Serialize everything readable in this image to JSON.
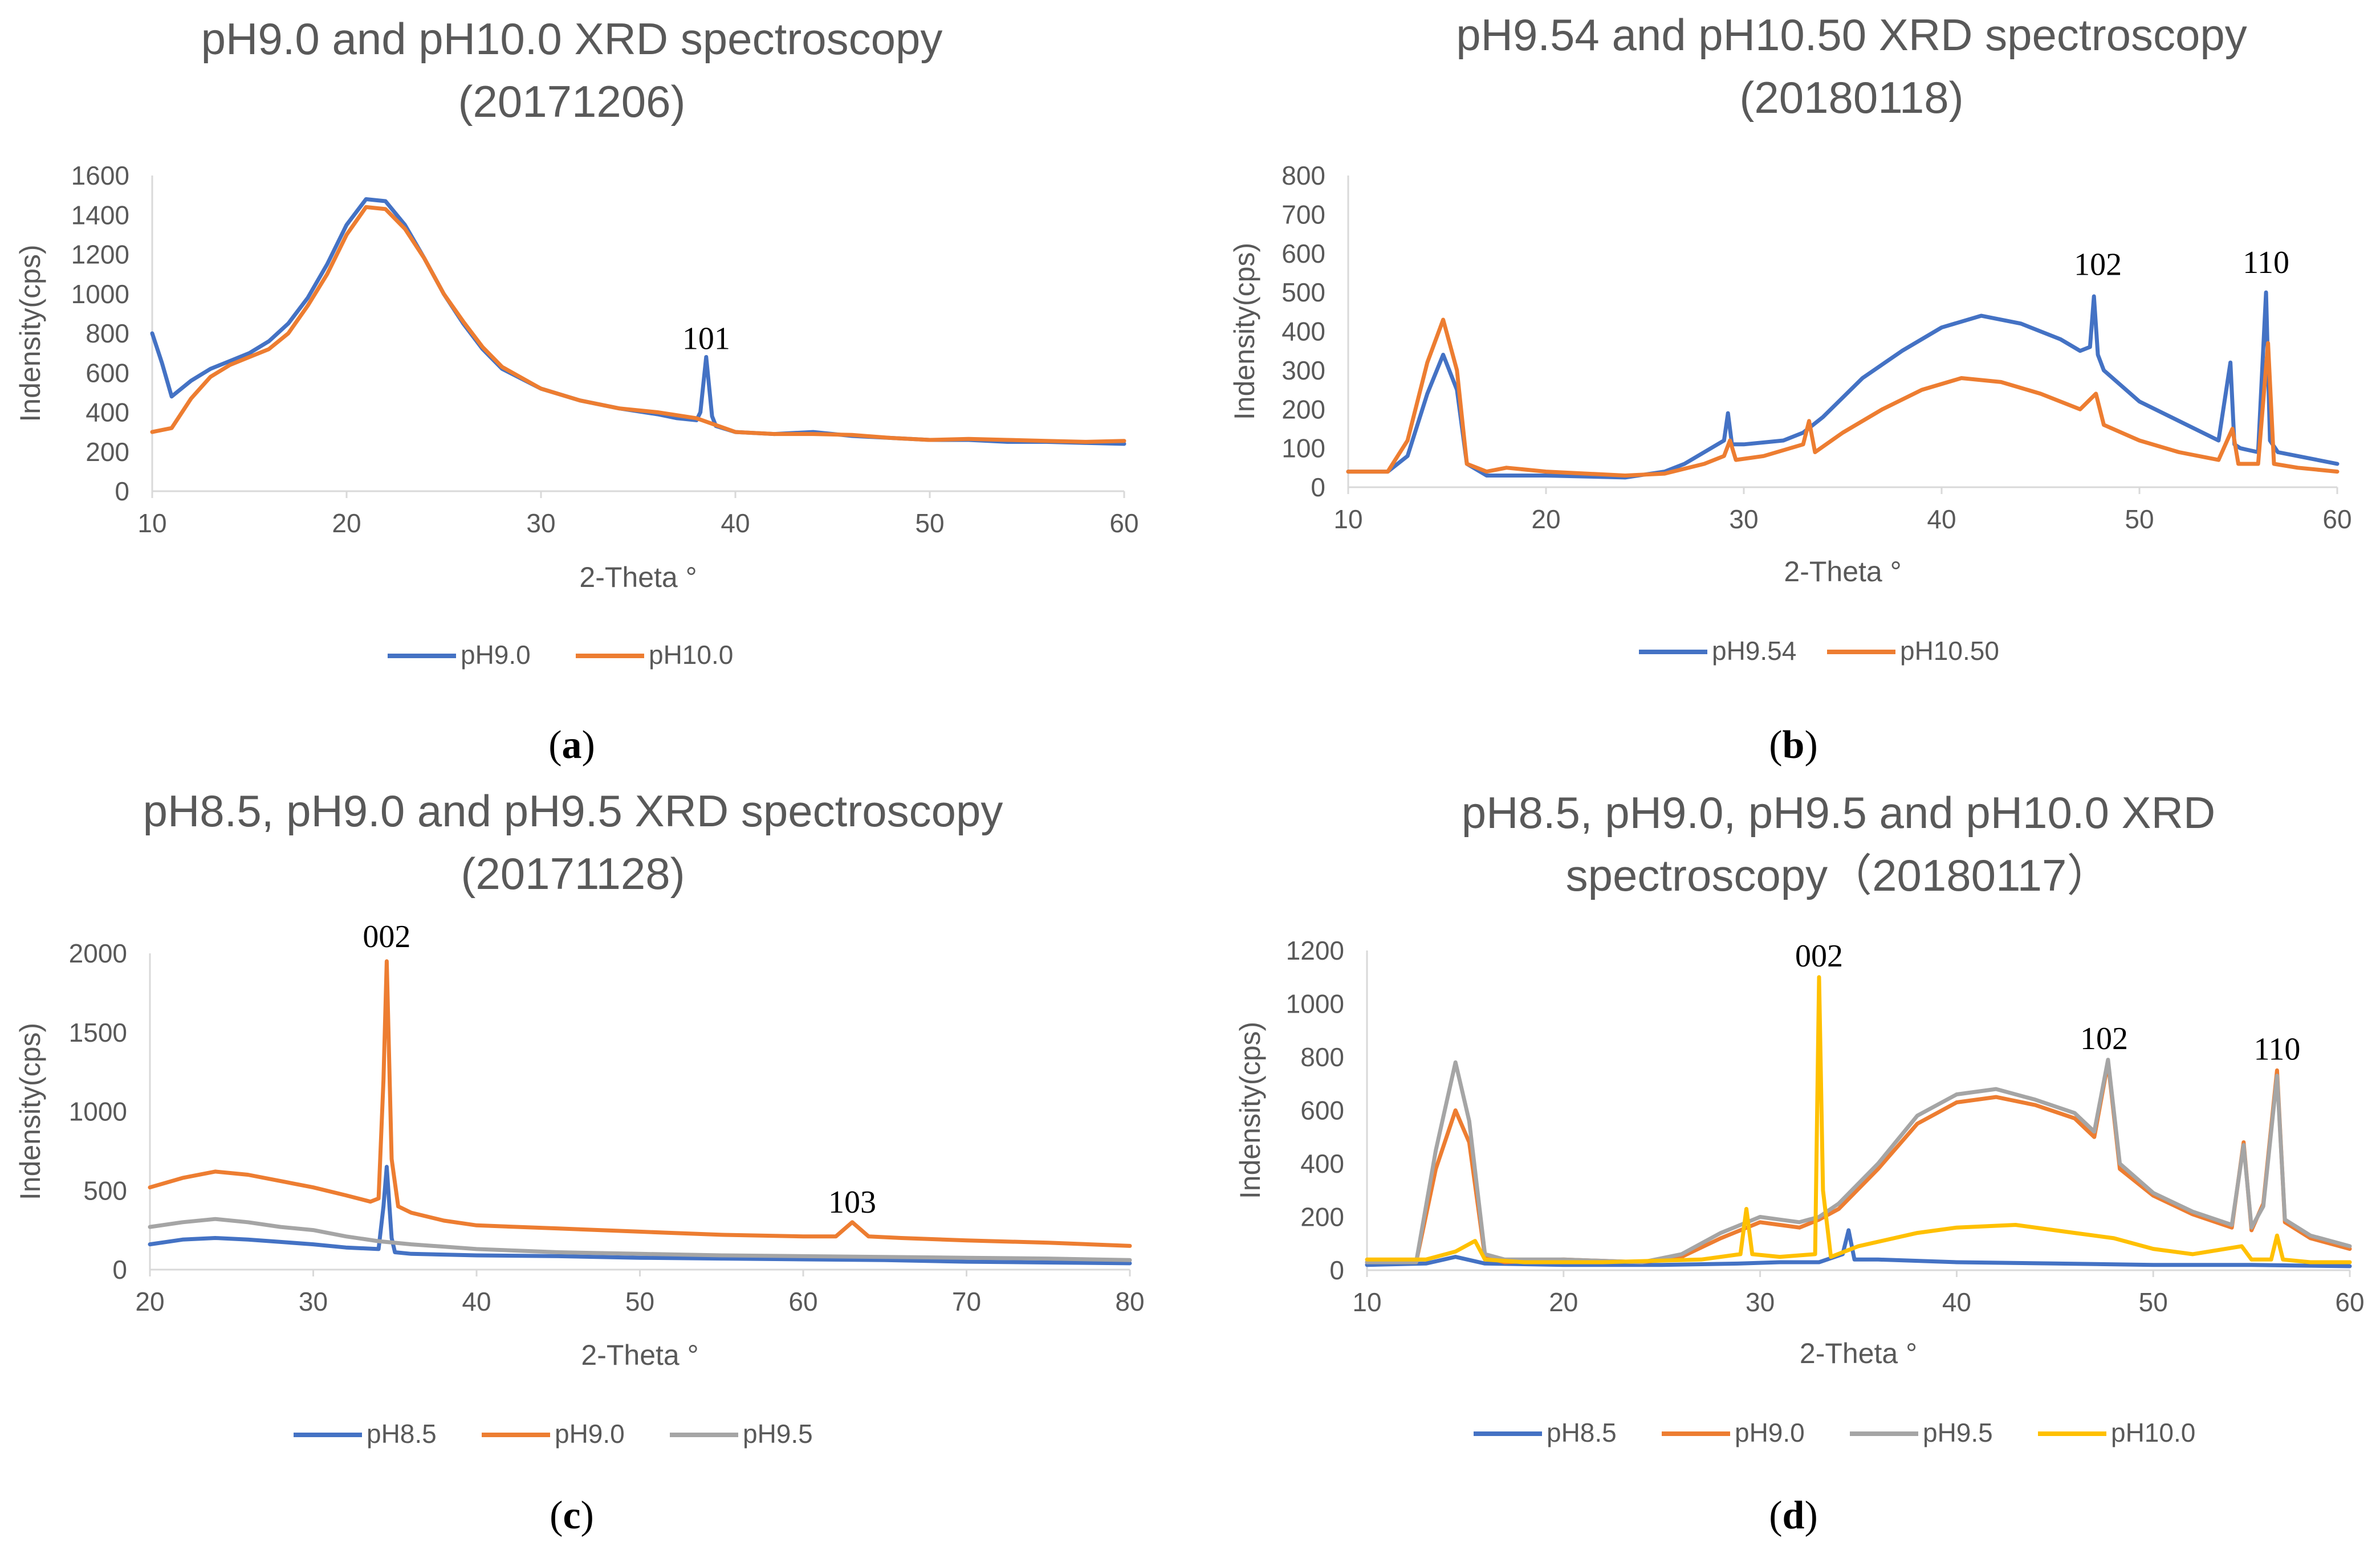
{
  "colors": {
    "blue": "#4472C4",
    "orange": "#ED7D31",
    "gray": "#A5A5A5",
    "yellow": "#FFC000",
    "text": "#595959",
    "axis": "#D9D9D9"
  },
  "chart_data": [
    {
      "panel": "a",
      "type": "line",
      "title_lines": [
        "pH9.0 and pH10.0 XRD spectroscopy",
        "(20171206)"
      ],
      "xlabel": "2-Theta °",
      "ylabel": "Indensity(cps)",
      "xlim": [
        10,
        60
      ],
      "ylim": [
        0,
        1600
      ],
      "xticks": [
        10,
        20,
        30,
        40,
        50,
        60
      ],
      "yticks": [
        0,
        200,
        400,
        600,
        800,
        1000,
        1200,
        1400,
        1600
      ],
      "legend_position": "bottom",
      "caption": "a",
      "series": [
        {
          "name": "pH9.0",
          "color": "#4472C4",
          "x": [
            10,
            10.5,
            11,
            12,
            13,
            14,
            15,
            16,
            17,
            18,
            19,
            20,
            21,
            22,
            23,
            24,
            25,
            26,
            27,
            28,
            30,
            32,
            34,
            36,
            37,
            38,
            38.2,
            38.5,
            38.8,
            39,
            40,
            42,
            44,
            46,
            48,
            50,
            52,
            54,
            56,
            58,
            60
          ],
          "y": [
            800,
            650,
            480,
            560,
            620,
            660,
            700,
            760,
            850,
            980,
            1150,
            1350,
            1480,
            1470,
            1350,
            1180,
            1000,
            850,
            720,
            620,
            520,
            460,
            420,
            390,
            370,
            360,
            400,
            680,
            380,
            330,
            300,
            290,
            300,
            280,
            270,
            260,
            260,
            250,
            250,
            245,
            240
          ]
        },
        {
          "name": "pH10.0",
          "color": "#ED7D31",
          "x": [
            10,
            11,
            12,
            13,
            14,
            15,
            16,
            17,
            18,
            19,
            20,
            21,
            22,
            23,
            24,
            25,
            26,
            27,
            28,
            30,
            32,
            34,
            36,
            38,
            40,
            42,
            44,
            46,
            48,
            50,
            52,
            54,
            56,
            58,
            60
          ],
          "y": [
            300,
            320,
            470,
            580,
            640,
            680,
            720,
            800,
            940,
            1100,
            1300,
            1440,
            1430,
            1330,
            1180,
            1000,
            860,
            730,
            630,
            520,
            460,
            420,
            400,
            370,
            300,
            290,
            290,
            285,
            270,
            260,
            265,
            260,
            255,
            250,
            255
          ]
        }
      ],
      "annotations": [
        {
          "text": "101",
          "x": 38.5,
          "y": 720
        }
      ]
    },
    {
      "panel": "b",
      "type": "line",
      "title_lines": [
        "pH9.54 and pH10.50 XRD spectroscopy",
        "(20180118)"
      ],
      "xlabel": "2-Theta °",
      "ylabel": "Indensity(cps)",
      "xlim": [
        10,
        60
      ],
      "ylim": [
        0,
        800
      ],
      "xticks": [
        10,
        20,
        30,
        40,
        50,
        60
      ],
      "yticks": [
        0,
        100,
        200,
        300,
        400,
        500,
        600,
        700,
        800
      ],
      "legend_position": "bottom",
      "caption": "b",
      "series": [
        {
          "name": "pH9.54",
          "color": "#4472C4",
          "x": [
            10,
            12,
            13,
            14,
            14.8,
            15.5,
            16,
            17,
            20,
            24,
            26,
            27,
            28,
            29,
            29.2,
            29.4,
            30,
            32,
            33,
            34,
            36,
            38,
            40,
            42,
            44,
            46,
            47,
            47.5,
            47.7,
            47.9,
            48.2,
            50,
            52,
            54,
            54.6,
            54.8,
            55.1,
            56,
            56.4,
            56.6,
            57,
            58,
            60
          ],
          "y": [
            40,
            40,
            80,
            240,
            340,
            250,
            60,
            30,
            30,
            25,
            40,
            60,
            90,
            120,
            190,
            110,
            110,
            120,
            140,
            180,
            280,
            350,
            410,
            440,
            420,
            380,
            350,
            360,
            490,
            340,
            300,
            220,
            170,
            120,
            320,
            110,
            100,
            90,
            500,
            120,
            90,
            80,
            60
          ]
        },
        {
          "name": "pH10.50",
          "color": "#ED7D31",
          "x": [
            10,
            12,
            13,
            14,
            14.8,
            15.5,
            16,
            17,
            18,
            20,
            24,
            26,
            28,
            29,
            29.3,
            29.6,
            31,
            33,
            33.3,
            33.6,
            35,
            37,
            39,
            41,
            43,
            45,
            47,
            47.8,
            48.2,
            50,
            52,
            54,
            54.7,
            55,
            56,
            56.5,
            56.8,
            58,
            60
          ],
          "y": [
            40,
            40,
            120,
            320,
            430,
            300,
            60,
            40,
            50,
            40,
            30,
            35,
            60,
            80,
            120,
            70,
            80,
            110,
            170,
            90,
            140,
            200,
            250,
            280,
            270,
            240,
            200,
            240,
            160,
            120,
            90,
            70,
            150,
            60,
            60,
            370,
            60,
            50,
            40
          ]
        }
      ],
      "annotations": [
        {
          "text": "102",
          "x": 47.9,
          "y": 545
        },
        {
          "text": "110",
          "x": 56.4,
          "y": 550
        }
      ]
    },
    {
      "panel": "c",
      "type": "line",
      "title_lines": [
        "pH8.5, pH9.0 and pH9.5 XRD spectroscopy",
        "(20171128)"
      ],
      "xlabel": "2-Theta °",
      "ylabel": "Indensity(cps)",
      "xlim": [
        20,
        80
      ],
      "ylim": [
        0,
        2000
      ],
      "xticks": [
        20,
        30,
        40,
        50,
        60,
        70,
        80
      ],
      "yticks": [
        0,
        500,
        1000,
        1500,
        2000
      ],
      "legend_position": "bottom",
      "caption": "c",
      "series": [
        {
          "name": "pH8.5",
          "color": "#4472C4",
          "x": [
            20,
            22,
            24,
            26,
            28,
            30,
            32,
            34,
            34.3,
            34.5,
            34.8,
            35,
            36,
            40,
            45,
            50,
            55,
            60,
            65,
            70,
            75,
            80
          ],
          "y": [
            160,
            190,
            200,
            190,
            175,
            160,
            140,
            130,
            400,
            650,
            200,
            110,
            100,
            90,
            85,
            75,
            70,
            65,
            60,
            50,
            45,
            40
          ]
        },
        {
          "name": "pH9.0",
          "color": "#ED7D31",
          "x": [
            20,
            22,
            24,
            26,
            28,
            30,
            32,
            33.5,
            34,
            34.3,
            34.5,
            34.8,
            35.2,
            36,
            38,
            40,
            45,
            50,
            55,
            60,
            62,
            63,
            64,
            66,
            70,
            75,
            80
          ],
          "y": [
            520,
            580,
            620,
            600,
            560,
            520,
            470,
            430,
            450,
            1200,
            1950,
            700,
            400,
            360,
            310,
            280,
            260,
            240,
            220,
            210,
            210,
            300,
            210,
            200,
            185,
            170,
            150
          ]
        },
        {
          "name": "pH9.5",
          "color": "#A5A5A5",
          "x": [
            20,
            22,
            24,
            26,
            28,
            30,
            32,
            34,
            36,
            40,
            45,
            50,
            55,
            60,
            65,
            70,
            75,
            80
          ],
          "y": [
            270,
            300,
            320,
            300,
            270,
            250,
            210,
            180,
            160,
            130,
            110,
            100,
            90,
            85,
            80,
            75,
            70,
            60
          ]
        }
      ],
      "annotations": [
        {
          "text": "002",
          "x": 34.5,
          "y": 2040
        },
        {
          "text": "103",
          "x": 63,
          "y": 360
        }
      ]
    },
    {
      "panel": "d",
      "type": "line",
      "title_lines": [
        "pH8.5, pH9.0, pH9.5 and pH10.0 XRD",
        "spectroscopy（20180117）"
      ],
      "xlabel": "2-Theta °",
      "ylabel": "Indensity(cps)",
      "xlim": [
        10,
        60
      ],
      "ylim": [
        0,
        1200
      ],
      "xticks": [
        10,
        20,
        30,
        40,
        50,
        60
      ],
      "yticks": [
        0,
        200,
        400,
        600,
        800,
        1000,
        1200
      ],
      "legend_position": "bottom",
      "caption": "d",
      "series": [
        {
          "name": "pH8.5",
          "color": "#4472C4",
          "x": [
            10,
            13,
            14.5,
            16,
            20,
            25,
            29,
            31,
            33,
            34.2,
            34.5,
            34.8,
            36,
            40,
            45,
            50,
            55,
            60
          ],
          "y": [
            20,
            25,
            50,
            25,
            20,
            20,
            25,
            30,
            30,
            60,
            150,
            40,
            40,
            30,
            25,
            20,
            20,
            15
          ]
        },
        {
          "name": "pH9.0",
          "color": "#ED7D31",
          "x": [
            10,
            12.5,
            13.5,
            14.5,
            15.2,
            16,
            17,
            20,
            24,
            26,
            28,
            30,
            31,
            32,
            33,
            34,
            36,
            38,
            40,
            42,
            44,
            46,
            47,
            47.7,
            48.3,
            50,
            52,
            54,
            54.6,
            55,
            55.6,
            56.3,
            56.7,
            58,
            60
          ],
          "y": [
            30,
            30,
            380,
            600,
            480,
            50,
            30,
            40,
            30,
            50,
            120,
            180,
            170,
            160,
            190,
            230,
            380,
            550,
            630,
            650,
            620,
            570,
            500,
            780,
            380,
            280,
            210,
            160,
            480,
            150,
            250,
            750,
            180,
            120,
            80
          ]
        },
        {
          "name": "pH9.5",
          "color": "#A5A5A5",
          "x": [
            10,
            12.5,
            13.5,
            14.5,
            15.2,
            16,
            17,
            20,
            24,
            26,
            28,
            30,
            31,
            32,
            33,
            34,
            36,
            38,
            40,
            42,
            44,
            46,
            47,
            47.7,
            48.3,
            50,
            52,
            54,
            54.6,
            55,
            55.6,
            56.3,
            56.7,
            58,
            60
          ],
          "y": [
            30,
            30,
            450,
            780,
            560,
            60,
            40,
            40,
            30,
            60,
            140,
            200,
            190,
            180,
            200,
            250,
            400,
            580,
            660,
            680,
            640,
            590,
            520,
            790,
            400,
            290,
            220,
            170,
            470,
            160,
            240,
            730,
            190,
            130,
            90
          ]
        },
        {
          "name": "pH10.0",
          "color": "#FFC000",
          "x": [
            10,
            13,
            14.5,
            15.5,
            16,
            18,
            22,
            27,
            29,
            29.3,
            29.6,
            31,
            32.8,
            33,
            33.2,
            33.6,
            35,
            38,
            40,
            43,
            46,
            48,
            50,
            52,
            54.5,
            55,
            56,
            56.3,
            56.6,
            58,
            60
          ],
          "y": [
            40,
            40,
            70,
            110,
            40,
            30,
            30,
            40,
            60,
            230,
            60,
            50,
            60,
            1100,
            300,
            50,
            90,
            140,
            160,
            170,
            140,
            120,
            80,
            60,
            90,
            40,
            40,
            130,
            40,
            30,
            30
          ]
        }
      ],
      "annotations": [
        {
          "text": "002",
          "x": 33,
          "y": 1140
        },
        {
          "text": "102",
          "x": 47.5,
          "y": 830
        },
        {
          "text": "110",
          "x": 56.3,
          "y": 790
        }
      ]
    }
  ]
}
